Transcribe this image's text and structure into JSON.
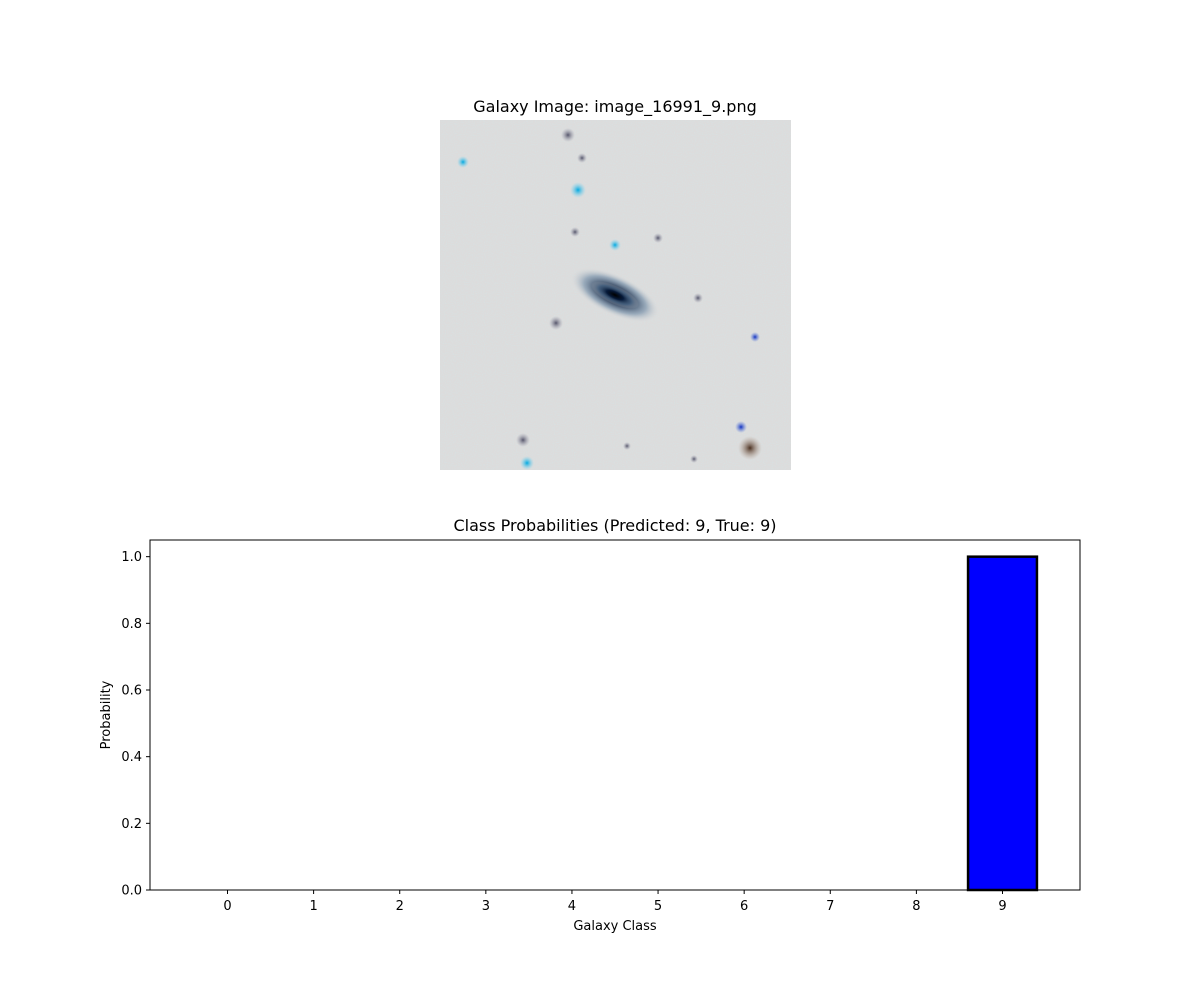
{
  "figure": {
    "image_panel": {
      "title": "Galaxy Image: image_16991_9.png",
      "background_color": "#dcdcdc"
    }
  },
  "chart_data": {
    "type": "bar",
    "title": "Class Probabilities (Predicted: 9, True: 9)",
    "xlabel": "Galaxy Class",
    "ylabel": "Probability",
    "categories": [
      "0",
      "1",
      "2",
      "3",
      "4",
      "5",
      "6",
      "7",
      "8",
      "9"
    ],
    "values": [
      0,
      0,
      0,
      0,
      0,
      0,
      0,
      0,
      0,
      1.0
    ],
    "ylim": [
      0,
      1.05
    ],
    "yticks": [
      "0.0",
      "0.2",
      "0.4",
      "0.6",
      "0.8",
      "1.0"
    ],
    "grid": false,
    "bar_color": "#0000ff",
    "edge_color": "#000000"
  }
}
